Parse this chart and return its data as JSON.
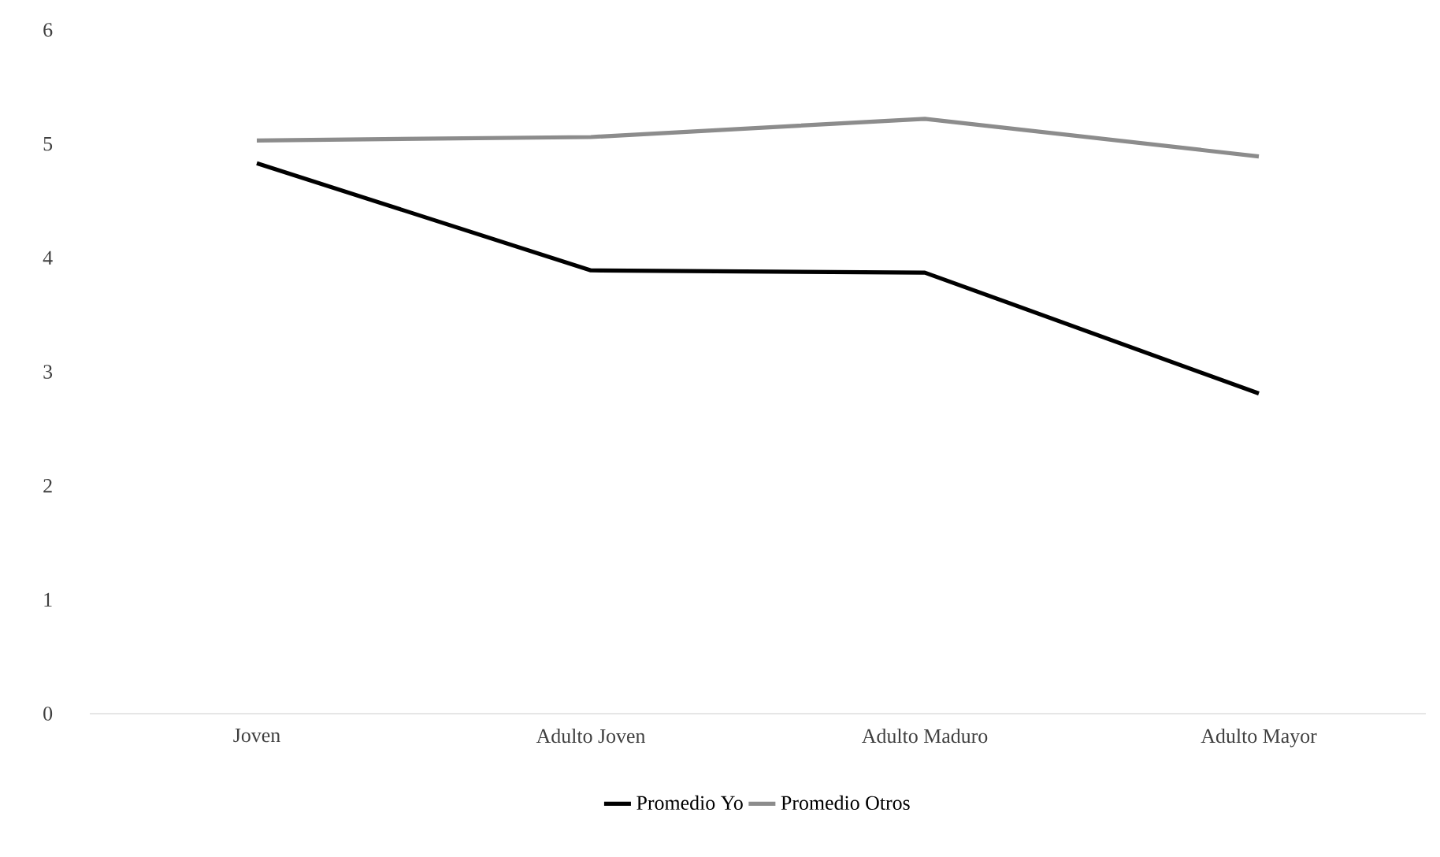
{
  "chart_data": {
    "type": "line",
    "categories": [
      "Joven",
      "Adulto Joven",
      "Adulto Maduro",
      "Adulto Mayor"
    ],
    "series": [
      {
        "name": "Promedio Yo",
        "color": "#000000",
        "values": [
          4.83,
          3.89,
          3.87,
          2.81
        ]
      },
      {
        "name": "Promedio Otros",
        "color": "#8c8c8c",
        "values": [
          5.03,
          5.06,
          5.22,
          4.89
        ]
      }
    ],
    "ylim": [
      0,
      6
    ],
    "yticks": [
      0,
      1,
      2,
      3,
      4,
      5,
      6
    ],
    "grid": false,
    "legend": "bottom",
    "marker": "none",
    "line_style": "solid"
  }
}
